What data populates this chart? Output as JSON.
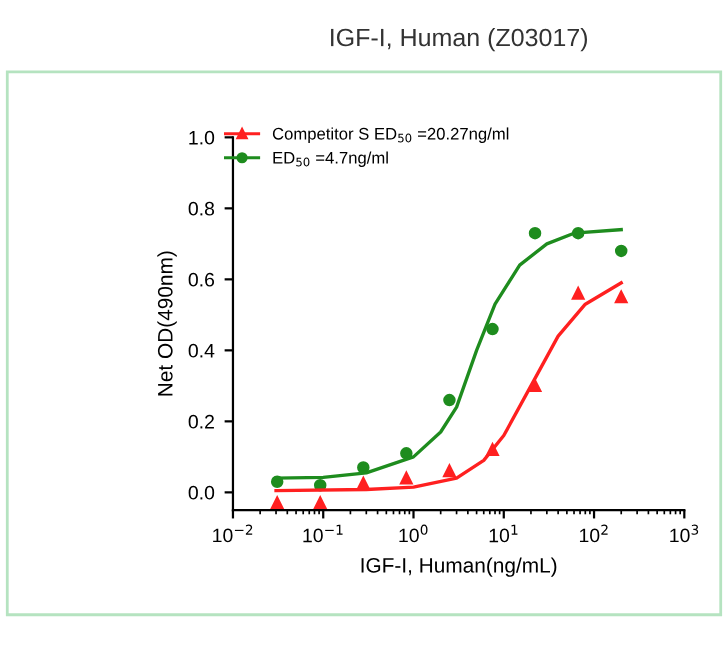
{
  "chart_data": {
    "type": "scatter",
    "title": "IGF-I, Human (Z03017)",
    "xlabel": "IGF-I, Human(ng/mL)",
    "ylabel": "Net OD(490nm)",
    "log": "x",
    "xlim": [
      0.01,
      1000
    ],
    "xticks": [
      {
        "value": 0.01,
        "label": "10$^{−2}$"
      },
      {
        "value": 0.1,
        "label": "10$^{−1}$"
      },
      {
        "value": 1,
        "label": "10$^{0}$"
      },
      {
        "value": 10,
        "label": "10$^{1}$"
      },
      {
        "value": 100,
        "label": "10$^{2}$"
      },
      {
        "value": 1000,
        "label": "10$^{3}$"
      }
    ],
    "ylim": [
      -0.05,
      1.0
    ],
    "yticks": [
      {
        "value": 0,
        "label": "0.0"
      },
      {
        "value": 0.2,
        "label": "0.2"
      },
      {
        "value": 0.4,
        "label": "0.4"
      },
      {
        "value": 0.6,
        "label": "0.6"
      },
      {
        "value": 0.8,
        "label": "0.8"
      },
      {
        "value": 1.0,
        "label": "1.0"
      }
    ],
    "grid": false,
    "legend": "top left",
    "x": [
      0.0309,
      0.0926,
      0.278,
      0.833,
      2.5,
      7.5,
      22.2,
      66.7,
      200
    ],
    "series": [
      {
        "name": "Competitor S ED$_{50}$ =20.27ng/ml",
        "color": "#ff2020",
        "marker": "triangle",
        "values": [
          -0.03,
          -0.03,
          0.025,
          0.04,
          0.06,
          0.12,
          0.3,
          0.56,
          0.55
        ]
      },
      {
        "name": "ED$_{50}$ =4.7ng/ml",
        "color": "#1e8c1e",
        "marker": "circle",
        "values": [
          0.03,
          0.02,
          0.07,
          0.11,
          0.26,
          0.46,
          0.73,
          0.73,
          0.68
        ]
      },
      {
        "type": "line",
        "color": "#ff2020",
        "marker": "none",
        "x": [
          0.03,
          0.3,
          1,
          3,
          6,
          10,
          20,
          40,
          80,
          200
        ],
        "values": [
          0.005,
          0.008,
          0.015,
          0.04,
          0.09,
          0.16,
          0.3,
          0.44,
          0.53,
          0.59
        ]
      },
      {
        "type": "line",
        "color": "#1e8c1e",
        "marker": "none",
        "x": [
          0.03,
          0.1,
          0.3,
          1,
          2,
          3,
          5,
          8,
          15,
          30,
          60,
          200
        ],
        "values": [
          0.04,
          0.042,
          0.055,
          0.1,
          0.17,
          0.24,
          0.4,
          0.53,
          0.64,
          0.7,
          0.73,
          0.74
        ]
      }
    ]
  }
}
